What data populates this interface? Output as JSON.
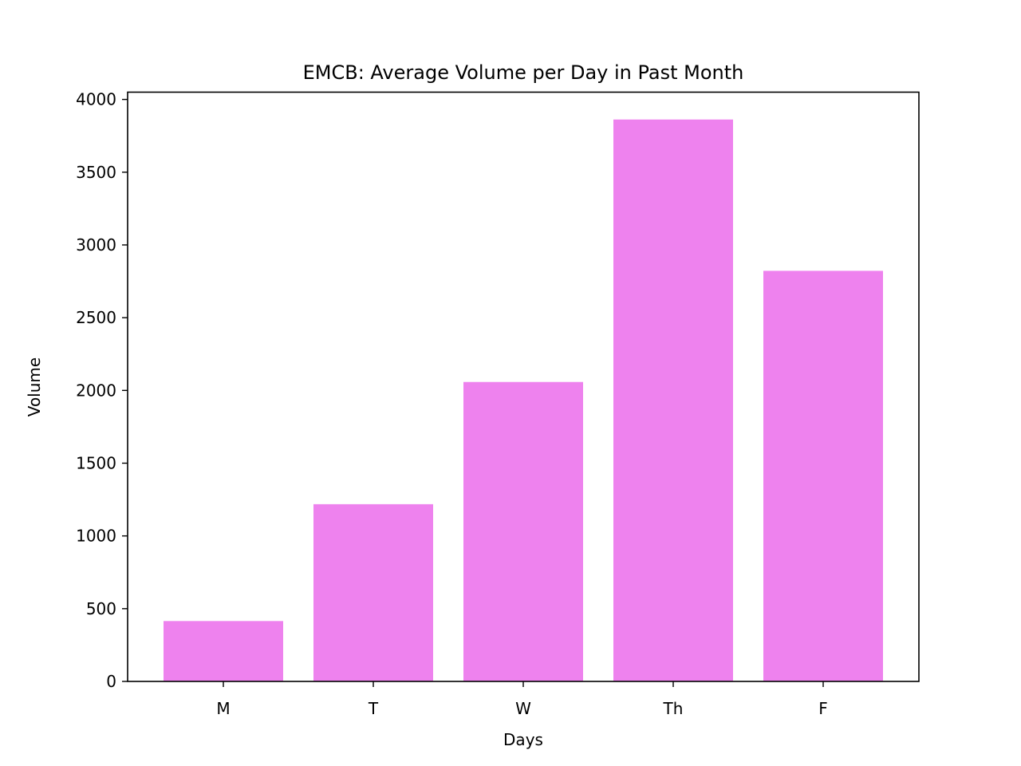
{
  "chart_data": {
    "type": "bar",
    "title": "EMCB: Average Volume per Day in Past Month",
    "xlabel": "Days",
    "ylabel": "Volume",
    "categories": [
      "M",
      "T",
      "W",
      "Th",
      "F"
    ],
    "values": [
      415,
      1218,
      2058,
      3862,
      2822
    ],
    "ylim": [
      0,
      4050
    ],
    "yticks": [
      0,
      500,
      1000,
      1500,
      2000,
      2500,
      3000,
      3500,
      4000
    ],
    "bar_color": "#ee82ee",
    "grid": false,
    "legend": "none"
  }
}
